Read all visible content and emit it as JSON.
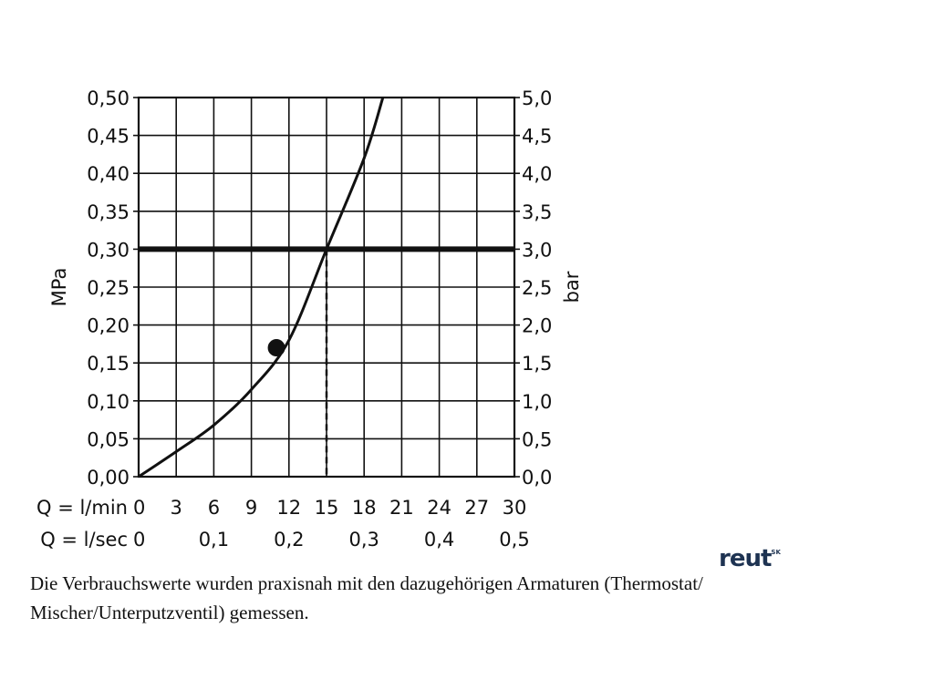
{
  "chart_data": {
    "type": "line",
    "ylabel_left": "MPa",
    "ylabel_right": "bar",
    "y_left": {
      "min": 0,
      "max": 0.5,
      "ticks": [
        "0,00",
        "0,05",
        "0,10",
        "0,15",
        "0,20",
        "0,25",
        "0,30",
        "0,35",
        "0,40",
        "0,45",
        "0,50"
      ]
    },
    "y_right": {
      "min": 0,
      "max": 5.0,
      "ticks": [
        "0,0",
        "0,5",
        "1,0",
        "1,5",
        "2,0",
        "2,5",
        "3,0",
        "3,5",
        "4,0",
        "4,5",
        "5,0"
      ]
    },
    "x_lmin": {
      "label": "Q = l/min",
      "min": 0,
      "max": 30,
      "ticks": [
        "0",
        "3",
        "6",
        "9",
        "12",
        "15",
        "18",
        "21",
        "24",
        "27",
        "30"
      ]
    },
    "x_lsec": {
      "label": "Q = l/sec",
      "ticks": [
        {
          "value": 0,
          "text": "0"
        },
        {
          "value": 0.1,
          "text": "0,1"
        },
        {
          "value": 0.2,
          "text": "0,2"
        },
        {
          "value": 0.3,
          "text": "0,3"
        },
        {
          "value": 0.4,
          "text": "0,4"
        },
        {
          "value": 0.5,
          "text": "0,5"
        }
      ]
    },
    "grid": true,
    "series": [
      {
        "values": [
          {
            "x": 0,
            "y": 0.0
          },
          {
            "x": 3,
            "y": 0.033
          },
          {
            "x": 6,
            "y": 0.068
          },
          {
            "x": 9,
            "y": 0.115
          },
          {
            "x": 12,
            "y": 0.18
          },
          {
            "x": 15,
            "y": 0.3
          },
          {
            "x": 18,
            "y": 0.42
          },
          {
            "x": 19.5,
            "y": 0.5
          }
        ]
      }
    ],
    "marker_point": {
      "x": 11,
      "y": 0.17
    },
    "reference_line": {
      "y": 0.3
    },
    "drop_line": {
      "x": 15,
      "y": 0.3
    }
  },
  "caption": "Die Verbrauchswerte wurden praxisnah mit den dazugehörigen Armaturen (Thermostat/ Mischer/Unterputzventil) gemessen.",
  "logo_text": "reut",
  "logo_sup": "SK",
  "colors": {
    "ink": "#111111",
    "logo": "#1e3352"
  }
}
